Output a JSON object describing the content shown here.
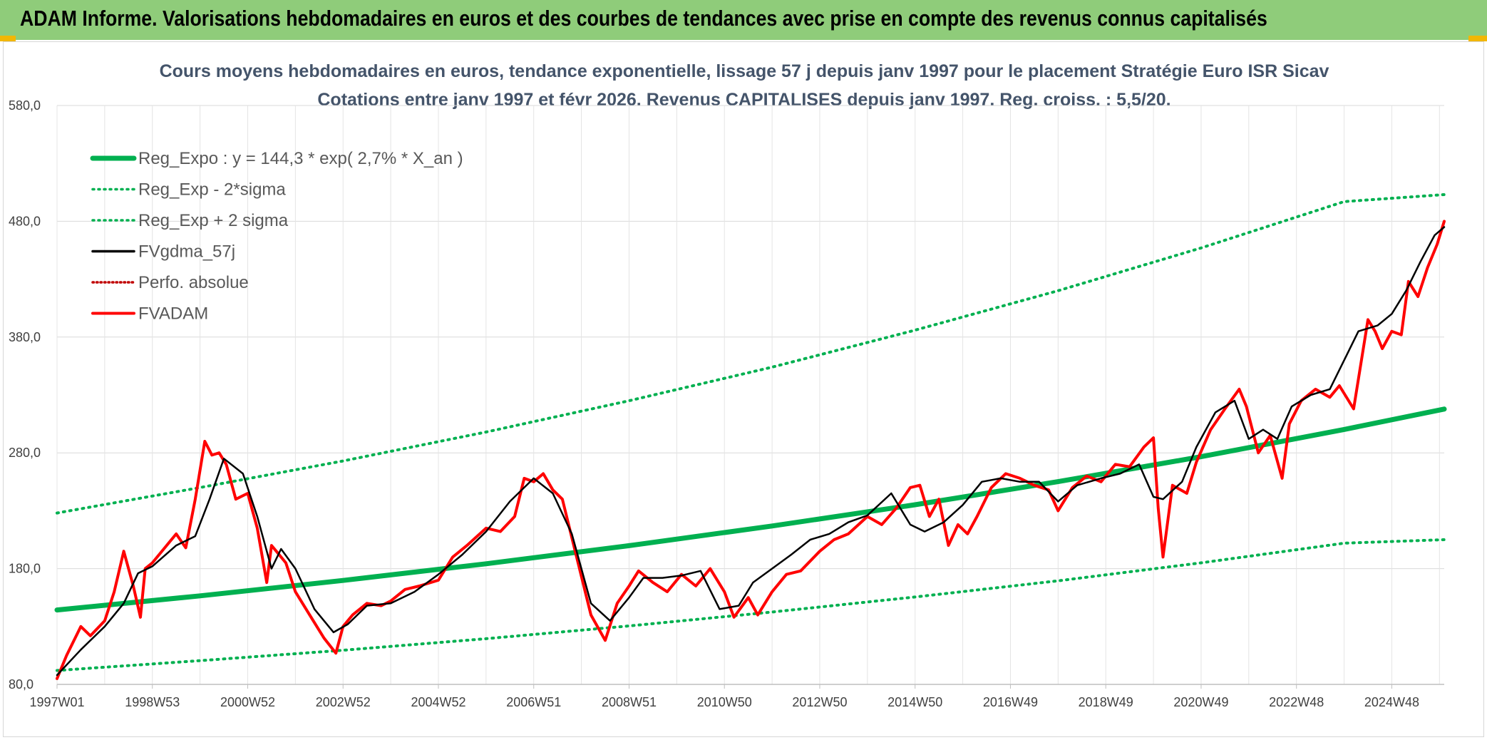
{
  "header": {
    "title": "ADAM Informe. Valorisations hebdomadaires en euros et des courbes de tendances avec prise en compte des revenus connus capitalisés"
  },
  "chart_data": {
    "type": "line",
    "title": "Cours moyens hebdomadaires en euros, tendance exponentielle, lissage 57 j depuis janv 1997 pour le placement Stratégie Euro ISR Sicav",
    "subtitle": "Cotations entre janv 1997 et févr 2026. Revenus CAPITALISES depuis janv 1997. Reg. croiss. : 5,5/20.",
    "xlabel": "",
    "ylabel": "",
    "x_range": [
      1997.0,
      2026.1
    ],
    "ylim": [
      80,
      580
    ],
    "y_ticks": [
      "80,0",
      "180,0",
      "280,0",
      "380,0",
      "480,0",
      "580,0"
    ],
    "x_ticks": [
      {
        "label": "1997W01",
        "x": 1997.0
      },
      {
        "label": "1998W53",
        "x": 1999.0
      },
      {
        "label": "2000W52",
        "x": 2001.0
      },
      {
        "label": "2002W52",
        "x": 2003.0
      },
      {
        "label": "2004W52",
        "x": 2005.0
      },
      {
        "label": "2006W51",
        "x": 2007.0
      },
      {
        "label": "2008W51",
        "x": 2009.0
      },
      {
        "label": "2010W50",
        "x": 2011.0
      },
      {
        "label": "2012W50",
        "x": 2013.0
      },
      {
        "label": "2014W50",
        "x": 2015.0
      },
      {
        "label": "2016W49",
        "x": 2017.0
      },
      {
        "label": "2018W49",
        "x": 2019.0
      },
      {
        "label": "2020W49",
        "x": 2021.0
      },
      {
        "label": "2022W48",
        "x": 2023.0
      },
      {
        "label": "2024W48",
        "x": 2025.0
      }
    ],
    "grid": true,
    "legend_position": "top-left",
    "series": [
      {
        "name": "Reg_Expo : y = 144,3 * exp( 2,7% *  X_an )",
        "style": "solid",
        "color": "#00b050",
        "x": [
          1997.0,
          2000.0,
          2003.0,
          2006.0,
          2009.0,
          2012.0,
          2015.0,
          2018.0,
          2021.0,
          2024.0,
          2026.1
        ],
        "values": [
          144.3,
          156.5,
          169.8,
          184.2,
          199.8,
          216.8,
          235.2,
          255.1,
          276.7,
          300.2,
          317.8
        ]
      },
      {
        "name": "Reg_Exp - 2*sigma",
        "style": "dotted",
        "color": "#00b050",
        "x": [
          1997.0,
          2000.0,
          2003.0,
          2006.0,
          2009.0,
          2012.0,
          2015.0,
          2018.0,
          2021.0,
          2024.0,
          2026.1
        ],
        "values": [
          92.0,
          100.5,
          109.5,
          119.5,
          130.5,
          142.5,
          155.5,
          169.5,
          185.0,
          202.0,
          205.0
        ]
      },
      {
        "name": "Reg_Exp + 2 sigma",
        "style": "dotted",
        "color": "#00b050",
        "x": [
          1997.0,
          2000.0,
          2003.0,
          2006.0,
          2009.0,
          2012.0,
          2015.0,
          2018.0,
          2021.0,
          2024.0,
          2026.1
        ],
        "values": [
          228.0,
          250.0,
          273.0,
          298.0,
          325.0,
          354.0,
          386.0,
          420.0,
          457.0,
          497.0,
          503.0
        ]
      },
      {
        "name": "FVgdma_57j",
        "style": "solid",
        "color": "#000000",
        "x": [
          1997.0,
          1997.5,
          1998.0,
          1998.4,
          1998.7,
          1999.0,
          1999.5,
          1999.9,
          2000.2,
          2000.5,
          2000.9,
          2001.2,
          2001.5,
          2001.7,
          2002.0,
          2002.4,
          2002.8,
          2003.1,
          2003.5,
          2004.0,
          2004.5,
          2005.0,
          2005.5,
          2006.0,
          2006.5,
          2007.0,
          2007.4,
          2007.8,
          2008.2,
          2008.6,
          2009.0,
          2009.3,
          2009.7,
          2010.1,
          2010.5,
          2010.9,
          2011.3,
          2011.6,
          2012.0,
          2012.4,
          2012.8,
          2013.2,
          2013.6,
          2014.0,
          2014.5,
          2014.9,
          2015.2,
          2015.6,
          2016.0,
          2016.4,
          2016.8,
          2017.2,
          2017.6,
          2018.0,
          2018.4,
          2018.9,
          2019.3,
          2019.7,
          2020.0,
          2020.2,
          2020.6,
          2020.9,
          2021.3,
          2021.7,
          2022.0,
          2022.3,
          2022.6,
          2022.9,
          2023.3,
          2023.7,
          2024.0,
          2024.3,
          2024.7,
          2025.0,
          2025.3,
          2025.6,
          2025.9,
          2026.1
        ],
        "values": [
          88,
          110,
          130,
          150,
          176,
          182,
          200,
          208,
          240,
          275,
          262,
          225,
          180,
          197,
          180,
          145,
          125,
          132,
          148,
          150,
          160,
          175,
          192,
          212,
          238,
          258,
          245,
          210,
          150,
          135,
          155,
          172,
          172,
          174,
          178,
          145,
          148,
          168,
          180,
          192,
          205,
          210,
          220,
          226,
          245,
          218,
          212,
          220,
          235,
          255,
          258,
          255,
          255,
          238,
          252,
          258,
          262,
          270,
          242,
          240,
          255,
          285,
          315,
          325,
          292,
          300,
          292,
          320,
          330,
          335,
          360,
          385,
          390,
          400,
          420,
          445,
          468,
          475
        ]
      },
      {
        "name": "Perfo. absolue",
        "style": "dotted",
        "color": "#c00000",
        "x": [],
        "values": []
      },
      {
        "name": "FVADAM",
        "style": "solid",
        "color": "#ff0000",
        "x": [
          1997.0,
          1997.2,
          1997.5,
          1997.7,
          1998.0,
          1998.2,
          1998.4,
          1998.6,
          1998.75,
          1998.85,
          1999.0,
          1999.3,
          1999.5,
          1999.7,
          1999.9,
          2000.1,
          2000.25,
          2000.4,
          2000.55,
          2000.75,
          2001.0,
          2001.2,
          2001.4,
          2001.5,
          2001.6,
          2001.8,
          2002.0,
          2002.3,
          2002.6,
          2002.85,
          2003.0,
          2003.2,
          2003.5,
          2003.8,
          2004.0,
          2004.3,
          2004.6,
          2005.0,
          2005.3,
          2005.6,
          2006.0,
          2006.3,
          2006.6,
          2006.8,
          2007.0,
          2007.2,
          2007.4,
          2007.6,
          2007.9,
          2008.2,
          2008.5,
          2008.75,
          2009.0,
          2009.2,
          2009.5,
          2009.8,
          2010.1,
          2010.4,
          2010.7,
          2011.0,
          2011.2,
          2011.5,
          2011.7,
          2012.0,
          2012.3,
          2012.6,
          2013.0,
          2013.3,
          2013.6,
          2014.0,
          2014.3,
          2014.6,
          2014.9,
          2015.1,
          2015.3,
          2015.5,
          2015.7,
          2015.9,
          2016.1,
          2016.3,
          2016.6,
          2016.9,
          2017.2,
          2017.5,
          2017.8,
          2018.0,
          2018.3,
          2018.6,
          2018.9,
          2019.2,
          2019.5,
          2019.8,
          2020.0,
          2020.1,
          2020.2,
          2020.4,
          2020.7,
          2020.9,
          2021.2,
          2021.5,
          2021.8,
          2021.95,
          2022.2,
          2022.45,
          2022.7,
          2022.85,
          2023.1,
          2023.4,
          2023.7,
          2023.9,
          2024.2,
          2024.5,
          2024.65,
          2024.8,
          2025.0,
          2025.2,
          2025.35,
          2025.55,
          2025.75,
          2025.95,
          2026.1
        ],
        "values": [
          85,
          105,
          130,
          122,
          135,
          160,
          195,
          165,
          138,
          180,
          185,
          200,
          210,
          198,
          240,
          290,
          278,
          280,
          270,
          240,
          245,
          215,
          168,
          200,
          195,
          185,
          160,
          140,
          120,
          107,
          130,
          140,
          150,
          148,
          152,
          162,
          165,
          170,
          190,
          200,
          215,
          212,
          225,
          258,
          255,
          262,
          248,
          240,
          190,
          140,
          118,
          150,
          165,
          178,
          168,
          160,
          175,
          165,
          180,
          160,
          138,
          155,
          140,
          160,
          175,
          178,
          195,
          205,
          210,
          225,
          218,
          232,
          250,
          252,
          225,
          240,
          200,
          218,
          210,
          225,
          250,
          262,
          258,
          252,
          248,
          230,
          250,
          260,
          255,
          270,
          268,
          285,
          293,
          232,
          190,
          252,
          245,
          272,
          300,
          318,
          335,
          320,
          280,
          295,
          258,
          305,
          325,
          335,
          328,
          338,
          318,
          395,
          385,
          370,
          385,
          382,
          428,
          415,
          440,
          460,
          480
        ]
      }
    ]
  }
}
